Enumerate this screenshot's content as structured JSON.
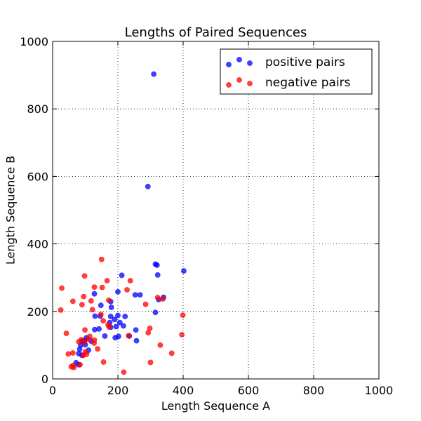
{
  "chart_data": {
    "type": "scatter",
    "title": "Lengths of Paired Sequences",
    "xlabel": "Length Sequence A",
    "ylabel": "Length Sequence B",
    "xlim": [
      0,
      1000
    ],
    "ylim": [
      0,
      1000
    ],
    "xticks": [
      "0",
      "200",
      "400",
      "600",
      "800",
      "1000"
    ],
    "yticks": [
      "0",
      "200",
      "400",
      "600",
      "800",
      "1000"
    ],
    "grid": true,
    "legend_position": "top-right",
    "series": [
      {
        "name": "positive pairs",
        "color": "#0000ff",
        "points": [
          [
            310,
            903
          ],
          [
            292,
            570
          ],
          [
            402,
            320
          ],
          [
            315,
            340
          ],
          [
            320,
            337
          ],
          [
            212,
            307
          ],
          [
            322,
            308
          ],
          [
            200,
            258
          ],
          [
            253,
            249
          ],
          [
            268,
            249
          ],
          [
            340,
            242
          ],
          [
            325,
            235
          ],
          [
            128,
            252
          ],
          [
            148,
            218
          ],
          [
            178,
            229
          ],
          [
            180,
            212
          ],
          [
            315,
            197
          ],
          [
            130,
            186
          ],
          [
            178,
            185
          ],
          [
            200,
            188
          ],
          [
            222,
            185
          ],
          [
            190,
            176
          ],
          [
            146,
            186
          ],
          [
            175,
            167
          ],
          [
            206,
            167
          ],
          [
            195,
            155
          ],
          [
            217,
            157
          ],
          [
            178,
            153
          ],
          [
            255,
            145
          ],
          [
            129,
            146
          ],
          [
            142,
            148
          ],
          [
            192,
            122
          ],
          [
            202,
            126
          ],
          [
            160,
            127
          ],
          [
            235,
            127
          ],
          [
            257,
            113
          ],
          [
            104,
            122
          ],
          [
            90,
            112
          ],
          [
            98,
            113
          ],
          [
            86,
            100
          ],
          [
            100,
            101
          ],
          [
            118,
            112
          ],
          [
            110,
            85
          ],
          [
            83,
            88
          ],
          [
            80,
            75
          ],
          [
            90,
            70
          ],
          [
            72,
            48
          ],
          [
            80,
            42
          ]
        ]
      },
      {
        "name": "negative pairs",
        "color": "#ff0000",
        "points": [
          [
            150,
            354
          ],
          [
            98,
            305
          ],
          [
            167,
            291
          ],
          [
            238,
            291
          ],
          [
            28,
            269
          ],
          [
            128,
            272
          ],
          [
            152,
            271
          ],
          [
            228,
            264
          ],
          [
            95,
            244
          ],
          [
            118,
            231
          ],
          [
            172,
            233
          ],
          [
            322,
            241
          ],
          [
            338,
            237
          ],
          [
            62,
            230
          ],
          [
            90,
            220
          ],
          [
            285,
            221
          ],
          [
            122,
            205
          ],
          [
            25,
            204
          ],
          [
            148,
            191
          ],
          [
            399,
            189
          ],
          [
            155,
            172
          ],
          [
            173,
            154
          ],
          [
            170,
            160
          ],
          [
            298,
            150
          ],
          [
            42,
            135
          ],
          [
            99,
            145
          ],
          [
            293,
            137
          ],
          [
            233,
            128
          ],
          [
            114,
            126
          ],
          [
            396,
            131
          ],
          [
            88,
            116
          ],
          [
            108,
            118
          ],
          [
            128,
            115
          ],
          [
            80,
            110
          ],
          [
            97,
            108
          ],
          [
            127,
            106
          ],
          [
            330,
            100
          ],
          [
            138,
            89
          ],
          [
            100,
            80
          ],
          [
            94,
            70
          ],
          [
            104,
            73
          ],
          [
            365,
            76
          ],
          [
            48,
            74
          ],
          [
            62,
            77
          ],
          [
            300,
            49
          ],
          [
            156,
            50
          ],
          [
            84,
            42
          ],
          [
            63,
            40
          ],
          [
            57,
            36
          ],
          [
            65,
            34
          ],
          [
            218,
            20
          ]
        ]
      }
    ]
  }
}
